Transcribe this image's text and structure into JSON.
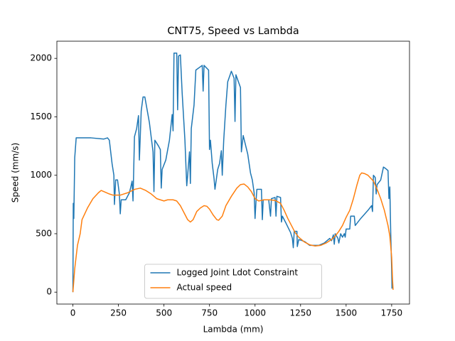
{
  "chart_data": {
    "type": "line",
    "title": "CNT75, Speed vs Lambda",
    "x_label": "Lambda (mm)",
    "y_label": "Speed (mm/s)",
    "xlim": [
      -88,
      1848
    ],
    "ylim": [
      -102,
      2147
    ],
    "xticks": [
      0,
      250,
      500,
      750,
      1000,
      1250,
      1500,
      1750
    ],
    "yticks": [
      0,
      500,
      1000,
      1500,
      2000
    ],
    "legend": "lower center",
    "series": [
      {
        "name": "Logged Joint Ldot Constraint",
        "color": "#1f77b4",
        "x": [
          0,
          2,
          5,
          10,
          18,
          100,
          170,
          190,
          200,
          215,
          225,
          228,
          235,
          245,
          255,
          260,
          265,
          290,
          310,
          318,
          325,
          330,
          338,
          350,
          360,
          365,
          375,
          385,
          395,
          420,
          440,
          445,
          450,
          470,
          480,
          485,
          490,
          510,
          530,
          545,
          550,
          555,
          570,
          575,
          580,
          590,
          600,
          615,
          625,
          630,
          640,
          645,
          650,
          665,
          675,
          710,
          715,
          720,
          745,
          750,
          755,
          765,
          775,
          780,
          795,
          805,
          815,
          820,
          828,
          840,
          850,
          870,
          885,
          890,
          895,
          920,
          925,
          935,
          960,
          975,
          985,
          995,
          1000,
          1005,
          1010,
          1035,
          1040,
          1045,
          1075,
          1085,
          1090,
          1110,
          1115,
          1120,
          1140,
          1145,
          1150,
          1170,
          1195,
          1205,
          1210,
          1215,
          1230,
          1232,
          1240,
          1260,
          1275,
          1300,
          1350,
          1380,
          1410,
          1420,
          1430,
          1435,
          1440,
          1455,
          1460,
          1470,
          1480,
          1490,
          1495,
          1500,
          1520,
          1525,
          1545,
          1550,
          1580,
          1620,
          1640,
          1645,
          1650,
          1660,
          1665,
          1670,
          1690,
          1705,
          1715,
          1730,
          1735,
          1740,
          1745,
          1750,
          1752
        ],
        "values": [
          0,
          760,
          630,
          1150,
          1320,
          1320,
          1310,
          1320,
          1300,
          1100,
          1000,
          750,
          960,
          960,
          840,
          670,
          790,
          790,
          850,
          900,
          950,
          780,
          1330,
          1400,
          1510,
          1130,
          1550,
          1670,
          1670,
          1450,
          1200,
          860,
          1300,
          1250,
          1220,
          890,
          1050,
          1130,
          1300,
          1520,
          1380,
          2045,
          2045,
          1560,
          2020,
          2030,
          1700,
          1300,
          910,
          1000,
          1200,
          930,
          1400,
          1600,
          1900,
          1940,
          1720,
          1940,
          1900,
          1220,
          1300,
          1100,
          970,
          880,
          1050,
          1100,
          1210,
          1000,
          1300,
          1600,
          1800,
          1890,
          1830,
          1460,
          1860,
          1750,
          1200,
          1340,
          1180,
          1020,
          960,
          850,
          630,
          770,
          880,
          880,
          620,
          790,
          790,
          650,
          800,
          810,
          650,
          820,
          810,
          600,
          650,
          590,
          510,
          460,
          380,
          520,
          520,
          390,
          450,
          440,
          430,
          400,
          400,
          420,
          460,
          440,
          490,
          410,
          500,
          460,
          420,
          500,
          470,
          500,
          470,
          540,
          540,
          650,
          650,
          570,
          630,
          700,
          740,
          690,
          1000,
          980,
          840,
          920,
          960,
          1070,
          1060,
          1040,
          800,
          900,
          500,
          200,
          30
        ]
      },
      {
        "name": "Actual speed",
        "color": "#ff7f0e",
        "x": [
          0,
          10,
          25,
          40,
          50,
          80,
          110,
          140,
          155,
          170,
          200,
          220,
          260,
          300,
          340,
          370,
          400,
          430,
          460,
          480,
          500,
          520,
          550,
          570,
          590,
          610,
          630,
          645,
          660,
          680,
          700,
          720,
          735,
          750,
          770,
          790,
          800,
          820,
          840,
          870,
          900,
          920,
          940,
          960,
          980,
          1000,
          1020,
          1050,
          1080,
          1110,
          1140,
          1160,
          1180,
          1200,
          1220,
          1240,
          1270,
          1300,
          1330,
          1360,
          1390,
          1420,
          1440,
          1460,
          1480,
          1500,
          1520,
          1540,
          1560,
          1575,
          1585,
          1600,
          1620,
          1650,
          1670,
          1690,
          1710,
          1730,
          1740,
          1750,
          1755,
          1758
        ],
        "values": [
          0,
          200,
          400,
          500,
          620,
          720,
          800,
          850,
          870,
          860,
          840,
          830,
          830,
          850,
          880,
          890,
          870,
          840,
          800,
          790,
          780,
          790,
          790,
          780,
          740,
          680,
          620,
          600,
          620,
          690,
          720,
          740,
          735,
          710,
          660,
          620,
          615,
          650,
          740,
          820,
          890,
          920,
          925,
          900,
          860,
          800,
          780,
          790,
          790,
          785,
          760,
          700,
          630,
          570,
          510,
          470,
          430,
          405,
          395,
          400,
          420,
          450,
          480,
          520,
          570,
          640,
          700,
          800,
          920,
          1000,
          1020,
          1015,
          1000,
          950,
          880,
          800,
          700,
          570,
          480,
          300,
          100,
          20
        ]
      }
    ]
  }
}
